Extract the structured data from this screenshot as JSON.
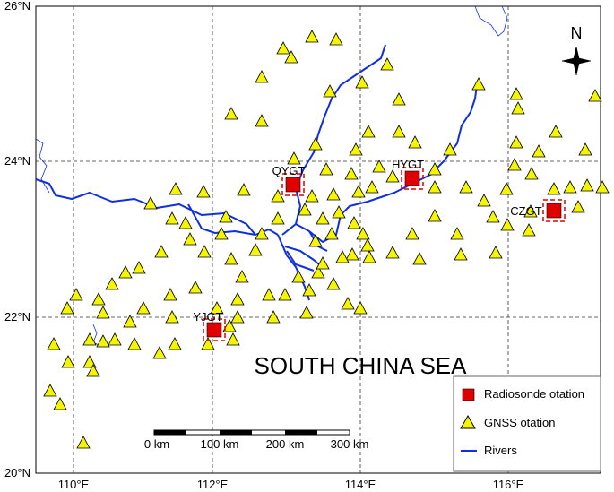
{
  "map": {
    "lat_labels": [
      "26°N",
      "24°N",
      "22°N",
      "20°N"
    ],
    "lon_labels": [
      "110°E",
      "112°E",
      "114°E",
      "116°E"
    ],
    "north": "N",
    "sea_label": "SOUTH CHINA SEA",
    "stations": [
      "QYGT",
      "HYGT",
      "CZGT",
      "YJGT"
    ],
    "scale_labels": [
      "0 km",
      "100 km",
      "200 km",
      "300 km"
    ],
    "legend": [
      "Radiosonde otation",
      "GNSS otation",
      "Rivers"
    ]
  }
}
